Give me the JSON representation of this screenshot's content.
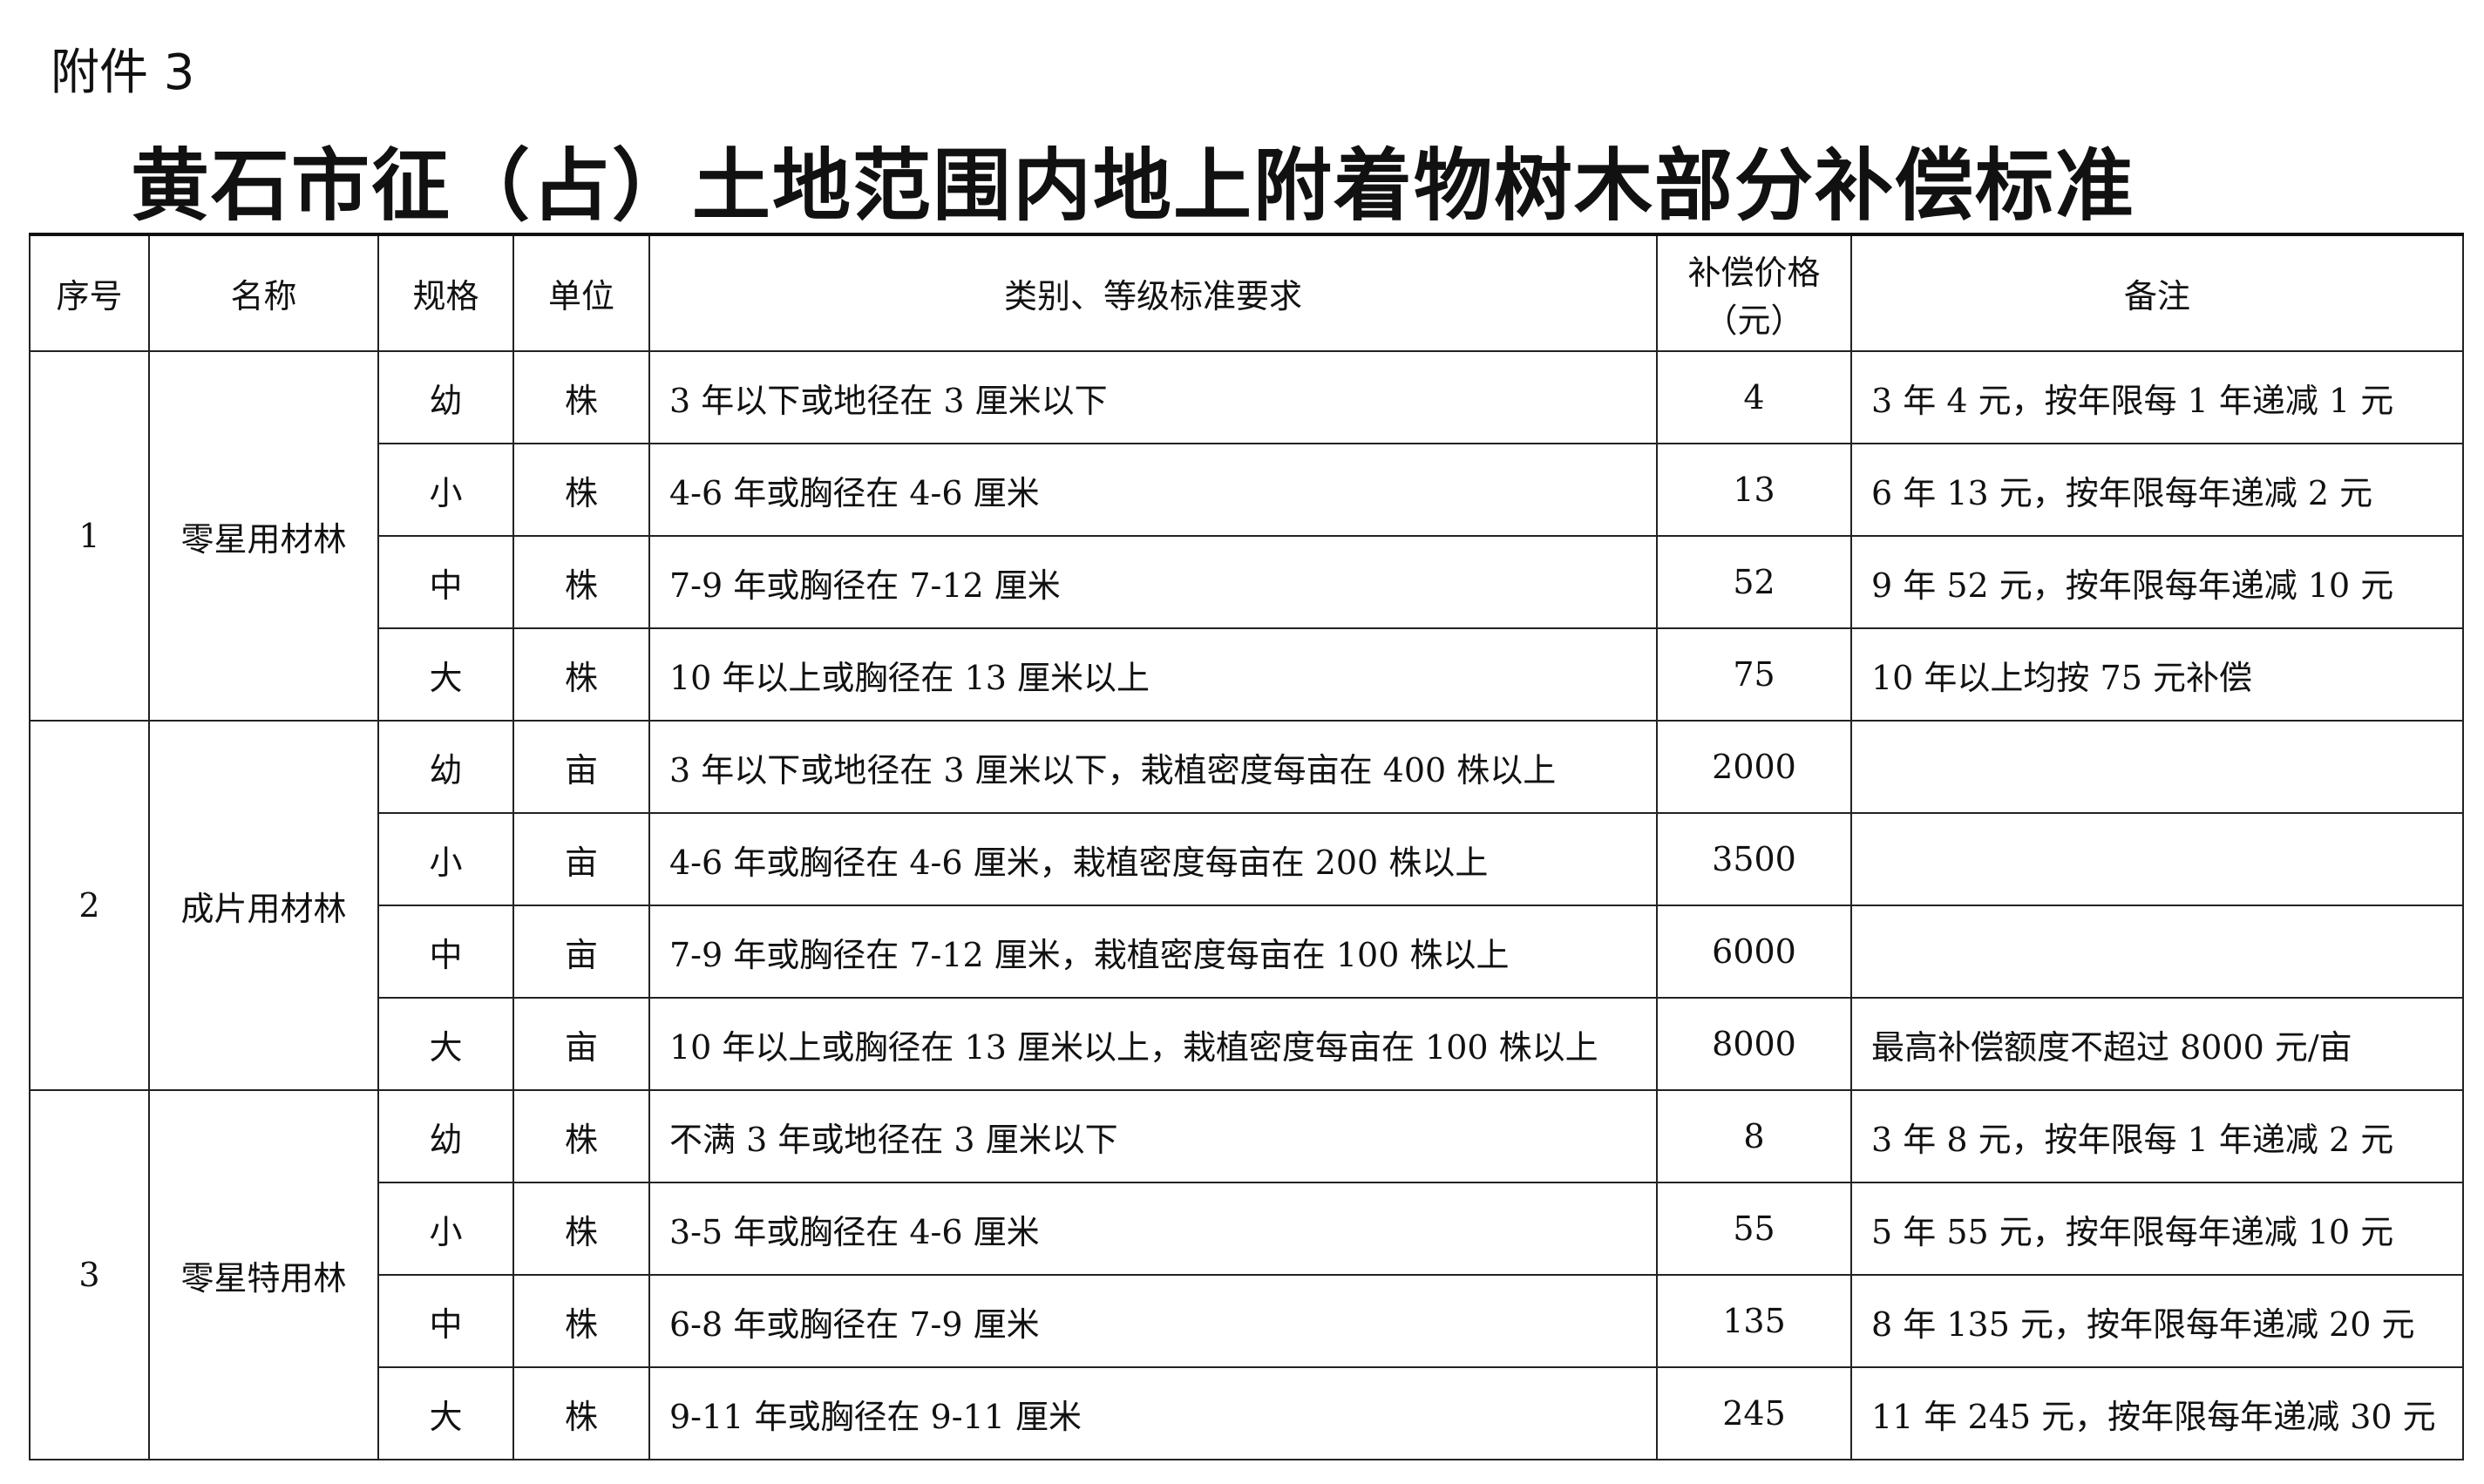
{
  "annex": "附件 3",
  "title": "黄石市征（占）土地范围内地上附着物树木部分补偿标准",
  "headers": {
    "no": "序号",
    "name": "名称",
    "spec": "规格",
    "unit": "单位",
    "req": "类别、等级标准要求",
    "price1": "补偿价格",
    "price2": "（元）",
    "note": "备注"
  },
  "groups": [
    {
      "no": "1",
      "name": "零星用材林",
      "rows": [
        {
          "spec": "幼",
          "unit": "株",
          "req": "3 年以下或地径在 3 厘米以下",
          "price": "4",
          "note": "3 年 4 元，按年限每 1 年递减 1 元"
        },
        {
          "spec": "小",
          "unit": "株",
          "req": "4-6 年或胸径在 4-6 厘米",
          "price": "13",
          "note": "6 年 13 元，按年限每年递减 2 元"
        },
        {
          "spec": "中",
          "unit": "株",
          "req": "7-9 年或胸径在 7-12 厘米",
          "price": "52",
          "note": "9 年 52 元，按年限每年递减 10 元"
        },
        {
          "spec": "大",
          "unit": "株",
          "req": "10 年以上或胸径在 13 厘米以上",
          "price": "75",
          "note": "10 年以上均按 75 元补偿"
        }
      ]
    },
    {
      "no": "2",
      "name": "成片用材林",
      "rows": [
        {
          "spec": "幼",
          "unit": "亩",
          "req": "3 年以下或地径在 3 厘米以下，栽植密度每亩在 400 株以上",
          "price": "2000",
          "note": ""
        },
        {
          "spec": "小",
          "unit": "亩",
          "req": "4-6 年或胸径在 4-6 厘米，栽植密度每亩在 200 株以上",
          "price": "3500",
          "note": ""
        },
        {
          "spec": "中",
          "unit": "亩",
          "req": "7-9 年或胸径在 7-12 厘米，栽植密度每亩在 100 株以上",
          "price": "6000",
          "note": ""
        },
        {
          "spec": "大",
          "unit": "亩",
          "req": "10 年以上或胸径在 13 厘米以上，栽植密度每亩在 100 株以上",
          "price": "8000",
          "note": "最高补偿额度不超过 8000 元/亩"
        }
      ]
    },
    {
      "no": "3",
      "name": "零星特用林",
      "rows": [
        {
          "spec": "幼",
          "unit": "株",
          "req": "不满 3 年或地径在 3 厘米以下",
          "price": "8",
          "note": "3 年 8 元，按年限每 1 年递减 2 元"
        },
        {
          "spec": "小",
          "unit": "株",
          "req": "3-5 年或胸径在 4-6 厘米",
          "price": "55",
          "note": "5 年 55 元，按年限每年递减 10 元"
        },
        {
          "spec": "中",
          "unit": "株",
          "req": "6-8 年或胸径在 7-9 厘米",
          "price": "135",
          "note": "8 年 135 元，按年限每年递减 20 元"
        },
        {
          "spec": "大",
          "unit": "株",
          "req": "9-11 年或胸径在 9-11 厘米",
          "price": "245",
          "note": "11 年 245 元，按年限每年递减 30 元"
        }
      ]
    }
  ]
}
